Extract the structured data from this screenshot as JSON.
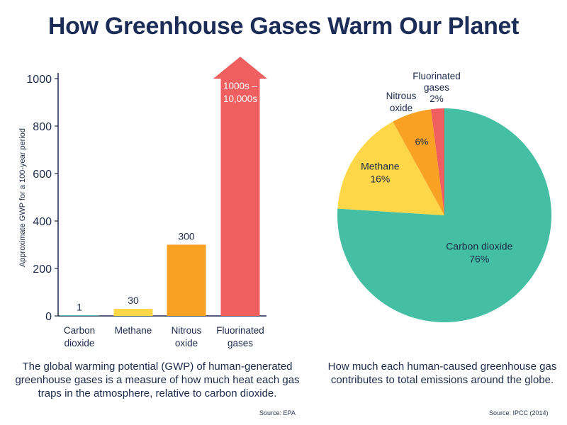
{
  "title": "How Greenhouse Gases Warm Our Planet",
  "colors": {
    "title": "#1b2d57",
    "carbon_dioxide": "#45bfa4",
    "methane": "#fdd748",
    "nitrous_oxide": "#f8a122",
    "fluorinated_gases": "#ef5f5f",
    "axis": "#1c2a4a"
  },
  "chart_data": [
    {
      "type": "bar",
      "title": "",
      "xlabel": "",
      "ylabel": "Approximate GWP for a 100-year period",
      "ylim": [
        0,
        1000
      ],
      "yticks": [
        "0",
        "200",
        "400",
        "600",
        "800",
        "1000"
      ],
      "categories": [
        "Carbon\ndioxide",
        "Methane",
        "Nitrous\noxide",
        "Fluorinated\ngases"
      ],
      "values": [
        1,
        30,
        300,
        1000
      ],
      "value_labels": [
        "1",
        "30",
        "300",
        "1000s –\n10,000s"
      ],
      "arrow_on_last": true,
      "grid": false,
      "caption": "The global warming potential (GWP) of human-generated greenhouse gases is a measure of how much heat each gas traps in the atmosphere, relative to carbon dioxide.",
      "source": "Source: EPA"
    },
    {
      "type": "pie",
      "title": "",
      "slices": [
        {
          "label": "Carbon dioxide",
          "value": 76,
          "value_label": "76%"
        },
        {
          "label": "Methane",
          "value": 16,
          "value_label": "16%"
        },
        {
          "label": "Nitrous\noxide",
          "value": 6,
          "value_label": "6%"
        },
        {
          "label": "Fluorinated\ngases",
          "value": 2,
          "value_label": "2%"
        }
      ],
      "caption": "How much each human-caused greenhouse gas contributes to total emissions around the globe.",
      "source": "Source: IPCC (2014)"
    }
  ]
}
